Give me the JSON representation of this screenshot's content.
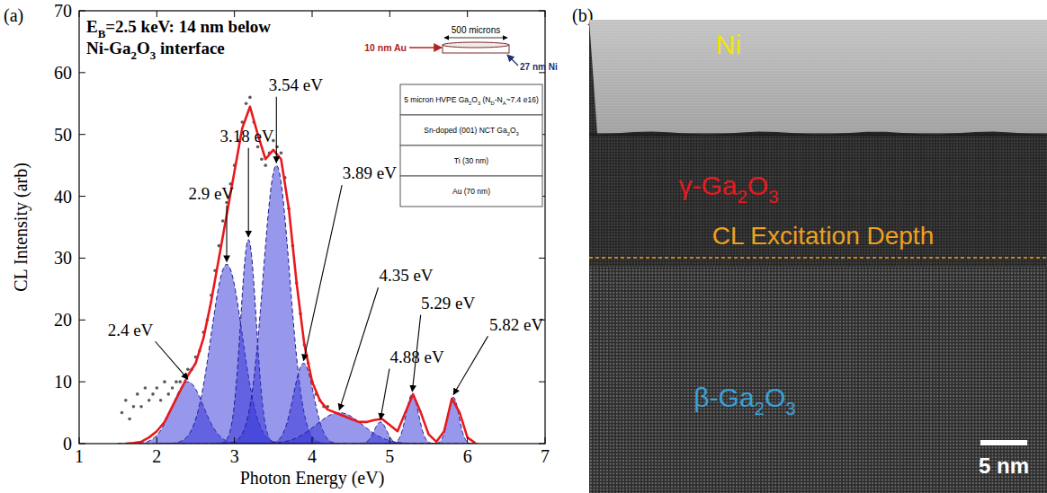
{
  "chart_data": {
    "type": "line",
    "xlabel": "Photon Energy (eV)",
    "ylabel": "CL Intensity (arb)",
    "xlim": [
      1,
      7
    ],
    "ylim": [
      0,
      70
    ],
    "xticks": [
      1,
      2,
      3,
      4,
      5,
      6,
      7
    ],
    "yticks": [
      0,
      10,
      20,
      30,
      40,
      50,
      60,
      70
    ],
    "grid": false,
    "series": [
      {
        "type": "scatter",
        "marker": "dot",
        "color": "#5a5a5a",
        "x": [
          1.55,
          1.6,
          1.65,
          1.7,
          1.75,
          1.8,
          1.85,
          1.9,
          1.95,
          2.0,
          2.05,
          2.1,
          2.15,
          2.2,
          2.25,
          2.3,
          2.35,
          2.4,
          2.45,
          2.5,
          2.55,
          2.6,
          2.65,
          2.7,
          2.75,
          2.8,
          2.85,
          2.9,
          2.95,
          3.0,
          3.05,
          3.1,
          3.15,
          3.2,
          3.25,
          3.3,
          3.35,
          3.4,
          3.45,
          3.5,
          3.55,
          3.6,
          3.65,
          3.7,
          3.75,
          3.8,
          3.85,
          3.9,
          3.95,
          4.0,
          4.05,
          4.1,
          4.15,
          4.2
        ],
        "values": [
          5,
          7,
          4,
          6,
          8,
          6,
          9,
          7,
          8,
          9,
          7,
          10,
          8,
          9,
          10,
          10,
          11,
          12,
          12,
          14,
          15,
          18,
          20,
          24,
          28,
          32,
          36,
          39,
          42,
          45,
          49,
          52,
          55,
          56,
          52,
          48,
          46,
          45,
          47,
          49,
          48,
          47,
          43,
          38,
          32,
          26,
          21,
          16,
          13,
          10,
          8,
          7,
          6,
          6
        ]
      },
      {
        "type": "line",
        "line_style": "solid",
        "color": "#e8191e",
        "x": [
          1.6,
          1.7,
          1.8,
          1.9,
          2.0,
          2.1,
          2.2,
          2.3,
          2.4,
          2.5,
          2.6,
          2.7,
          2.8,
          2.9,
          3.0,
          3.1,
          3.2,
          3.3,
          3.4,
          3.5,
          3.6,
          3.7,
          3.8,
          3.9,
          4.0,
          4.1,
          4.2,
          4.3,
          4.4,
          4.5,
          4.6,
          4.7,
          4.8,
          4.9,
          5.0,
          5.1,
          5.2,
          5.3,
          5.4,
          5.5,
          5.6,
          5.7,
          5.8,
          5.9,
          6.0,
          6.1
        ],
        "values": [
          0,
          0.1,
          0.3,
          1,
          2,
          3.5,
          6,
          8.5,
          11,
          13,
          17,
          23,
          30,
          37,
          44,
          51,
          54.5,
          50,
          46,
          47.5,
          46,
          38,
          26,
          16,
          10,
          7,
          5.5,
          5,
          4.5,
          4,
          3.5,
          3.5,
          3.8,
          4,
          3,
          2,
          5,
          8,
          5,
          1.5,
          0.3,
          2,
          7.3,
          5,
          1,
          0.1
        ]
      }
    ],
    "peaks": {
      "color": "#2f2fd8",
      "items": [
        {
          "label": "2.4 eV",
          "center": 2.4,
          "amplitude": 10,
          "width": 0.2
        },
        {
          "label": "2.9 eV",
          "center": 2.9,
          "amplitude": 29,
          "width": 0.2
        },
        {
          "label": "3.18 eV",
          "center": 3.18,
          "amplitude": 33,
          "width": 0.1
        },
        {
          "label": "3.54 eV",
          "center": 3.54,
          "amplitude": 45,
          "width": 0.17
        },
        {
          "label": "3.89 eV",
          "center": 3.89,
          "amplitude": 13,
          "width": 0.13
        },
        {
          "label": "4.35 eV",
          "center": 4.35,
          "amplitude": 5,
          "width": 0.3
        },
        {
          "label": "4.88 eV",
          "center": 4.88,
          "amplitude": 3.5,
          "width": 0.08
        },
        {
          "label": "5.29 eV",
          "center": 5.29,
          "amplitude": 8,
          "width": 0.08
        },
        {
          "label": "5.82 eV",
          "center": 5.82,
          "amplitude": 7.5,
          "width": 0.07
        }
      ]
    },
    "annotation": [
      [
        "E",
        {
          "sub": "B"
        },
        "=2.5 keV: 14 nm below"
      ],
      [
        "Ni-Ga",
        {
          "sub": "2"
        },
        "O",
        {
          "sub": "3"
        },
        " interface"
      ]
    ]
  },
  "panel_labels": [
    "(a)",
    "(b)"
  ],
  "inset": {
    "width_label": "500 microns",
    "left_label": "10 nm Au",
    "right_label": "27 nm Ni",
    "layers": [
      [
        "5 micron  HVPE Ga",
        {
          "sub": "2"
        },
        "O",
        {
          "sub": "3"
        },
        " (N",
        {
          "sub": "D"
        },
        "-N",
        {
          "sub": "A"
        },
        "~7.4 e16)"
      ],
      [
        "Sn-doped (001) NCT Ga",
        {
          "sub": "2"
        },
        "O",
        {
          "sub": "3"
        }
      ],
      [
        "Ti (30 nm)"
      ],
      [
        "Au (70 nm)"
      ]
    ]
  },
  "tem": {
    "labels": [
      [
        "Ni"
      ],
      [
        "γ-Ga",
        {
          "sub": "2"
        },
        "O",
        {
          "sub": "3"
        }
      ],
      [
        "CL Excitation Depth"
      ],
      [
        "β-Ga",
        {
          "sub": "2"
        },
        "O",
        {
          "sub": "3"
        }
      ]
    ],
    "scale_bar": "5 nm"
  }
}
